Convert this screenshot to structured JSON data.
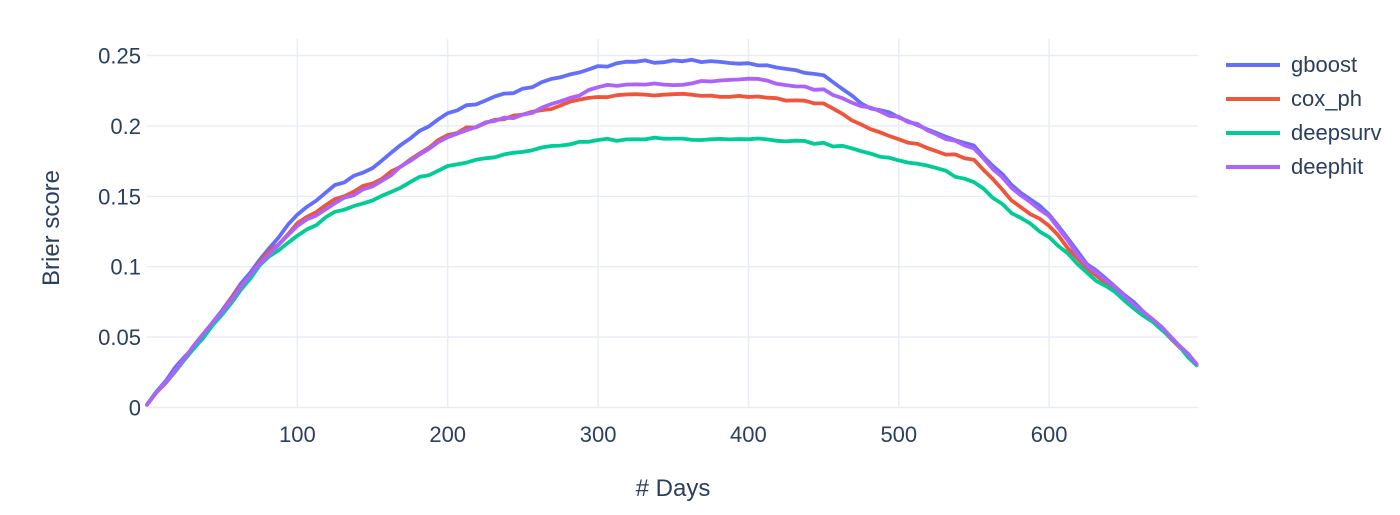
{
  "chart_data": {
    "type": "line",
    "title": "",
    "xlabel": "# Days",
    "ylabel": "Brier score",
    "xlim": [
      0,
      699
    ],
    "ylim": [
      0,
      0.262
    ],
    "grid": true,
    "legend_position": "right-top",
    "xticks": [
      100,
      200,
      300,
      400,
      500,
      600
    ],
    "xtick_labels": [
      "100",
      "200",
      "300",
      "400",
      "500",
      "600"
    ],
    "yticks": [
      0,
      0.05,
      0.1,
      0.15,
      0.2,
      0.25
    ],
    "ytick_labels": [
      "0",
      "0.05",
      "0.1",
      "0.15",
      "0.2",
      "0.25"
    ],
    "x": [
      0,
      25,
      50,
      75,
      100,
      125,
      150,
      175,
      200,
      225,
      250,
      275,
      300,
      325,
      350,
      375,
      400,
      425,
      450,
      475,
      500,
      525,
      550,
      575,
      600,
      625,
      650,
      675,
      698
    ],
    "series": [
      {
        "name": "gboost",
        "color": "#636EFA",
        "values": [
          0.002,
          0.036,
          0.069,
          0.105,
          0.137,
          0.158,
          0.17,
          0.191,
          0.209,
          0.218,
          0.2265,
          0.2345,
          0.2425,
          0.2455,
          0.2465,
          0.246,
          0.2445,
          0.2405,
          0.236,
          0.216,
          0.206,
          0.195,
          0.186,
          0.158,
          0.137,
          0.102,
          0.08,
          0.057,
          0.031
        ]
      },
      {
        "name": "cox_ph",
        "color": "#EF553B",
        "values": [
          0.002,
          0.035,
          0.068,
          0.103,
          0.131,
          0.148,
          0.159,
          0.176,
          0.1935,
          0.202,
          0.208,
          0.2145,
          0.2205,
          0.2225,
          0.2225,
          0.2215,
          0.2205,
          0.218,
          0.216,
          0.201,
          0.1905,
          0.182,
          0.176,
          0.147,
          0.129,
          0.099,
          0.0775,
          0.0555,
          0.03
        ]
      },
      {
        "name": "deepsurv",
        "color": "#00CC96",
        "values": [
          0.002,
          0.034,
          0.066,
          0.101,
          0.122,
          0.139,
          0.147,
          0.16,
          0.1715,
          0.177,
          0.1815,
          0.186,
          0.19,
          0.1905,
          0.191,
          0.1905,
          0.1905,
          0.189,
          0.188,
          0.182,
          0.1755,
          0.17,
          0.16,
          0.138,
          0.121,
          0.096,
          0.076,
          0.055,
          0.03
        ]
      },
      {
        "name": "deephit",
        "color": "#AB63FA",
        "values": [
          0.002,
          0.035,
          0.068,
          0.102,
          0.129,
          0.145,
          0.157,
          0.175,
          0.192,
          0.2025,
          0.208,
          0.2175,
          0.2275,
          0.2295,
          0.229,
          0.2315,
          0.2335,
          0.229,
          0.226,
          0.214,
          0.2065,
          0.194,
          0.184,
          0.156,
          0.136,
          0.101,
          0.079,
          0.057,
          0.031
        ]
      }
    ]
  },
  "style": {
    "text_color": "#2a3f5f",
    "grid_color": "#e7ecf5",
    "background": "#ffffff"
  }
}
